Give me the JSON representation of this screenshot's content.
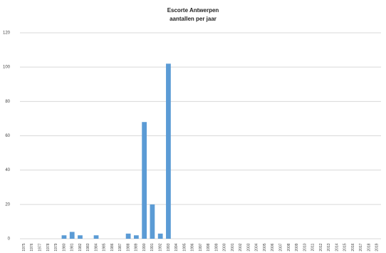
{
  "chart_data": {
    "type": "bar",
    "title": [
      "Escorte Antwerpen",
      "aantallen per jaar"
    ],
    "categories": [
      "1975",
      "1976",
      "1977",
      "1978",
      "1979",
      "1980",
      "1981",
      "1982",
      "1983",
      "1984",
      "1985",
      "1986",
      "1987",
      "1988",
      "1989",
      "1990",
      "1991",
      "1992",
      "1993",
      "1994",
      "1995",
      "1996",
      "1997",
      "1998",
      "1999",
      "2000",
      "2001",
      "2002",
      "2003",
      "2004",
      "2005",
      "2006",
      "2007",
      "2008",
      "2009",
      "2010",
      "2011",
      "2012",
      "2013",
      "2014",
      "2015",
      "2016",
      "2017",
      "2018",
      "2019"
    ],
    "values": [
      0,
      0,
      0,
      0,
      0,
      2,
      4,
      2,
      0,
      2,
      0,
      0,
      0,
      3,
      2,
      68,
      20,
      3,
      102,
      0,
      0,
      0,
      0,
      0,
      0,
      0,
      0,
      0,
      0,
      0,
      0,
      0,
      0,
      0,
      0,
      0,
      0,
      0,
      0,
      0,
      0,
      0,
      0,
      0,
      0
    ],
    "color": "#5b9bd5",
    "ylim": [
      0,
      120
    ],
    "yticks": [
      0,
      20,
      40,
      60,
      80,
      100,
      120
    ],
    "grid": true
  }
}
